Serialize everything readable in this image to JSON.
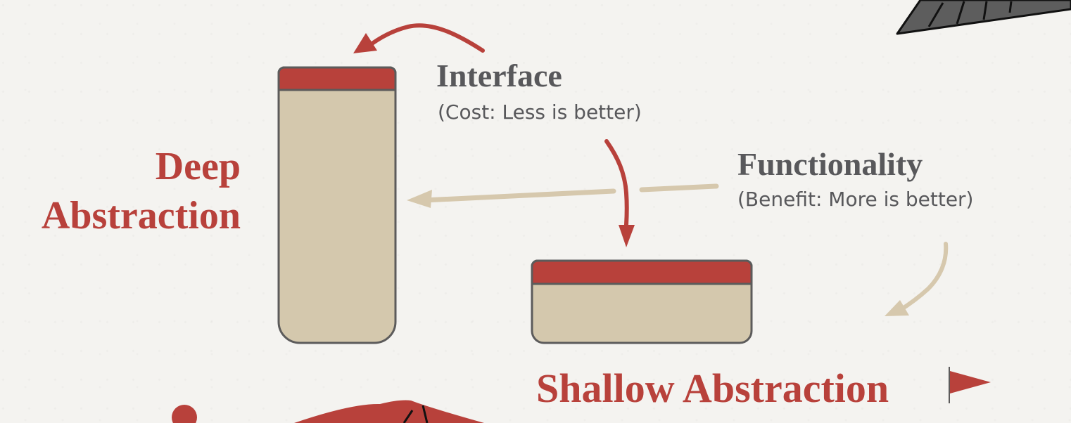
{
  "labels": {
    "deep_line1": "Deep",
    "deep_line2": "Abstraction",
    "interface_title": "Interface",
    "interface_note": "(Cost: Less is better)",
    "functionality_title": "Functionality",
    "functionality_note": "(Benefit: More is better)",
    "shallow_title": "Shallow Abstraction"
  },
  "colors": {
    "accent_red": "#b8413b",
    "box_fill": "#d4c8ad",
    "outline": "#5c5b5b",
    "text_gray": "#58585b",
    "background": "#f4f3f0",
    "arrow_tan": "#d6c8ad"
  },
  "icons": {
    "flag": "flag-icon",
    "corner_shape": "paper-shard-decoration",
    "bottom_shape": "paper-shard-decoration"
  }
}
